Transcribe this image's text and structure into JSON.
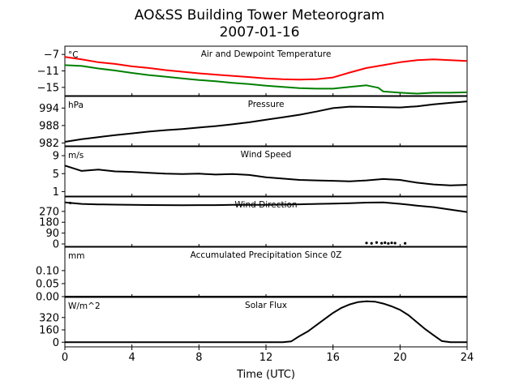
{
  "title": "AO&SS Building Tower Meteorogram",
  "date": "2007-01-16",
  "xlabel": "Time (UTC)",
  "chart_data": {
    "type": "line",
    "xlim": [
      0,
      24
    ],
    "x_ticks": [
      0,
      4,
      8,
      12,
      16,
      20,
      24
    ],
    "panels": [
      {
        "key": "temp",
        "title": "Air and Dewpoint Temperature",
        "unit": "°C",
        "ylim": [
          -17,
          -5
        ],
        "yticks": [
          -7,
          -11,
          -15
        ],
        "ytick_labels": [
          "−7",
          "−11",
          "−15"
        ],
        "series": [
          {
            "color": "#ff0000",
            "x": [
              0,
              1,
              2,
              3,
              4,
              5,
              6,
              7,
              8,
              9,
              10,
              11,
              12,
              13,
              14,
              15,
              16,
              17,
              18,
              19,
              20,
              21,
              22,
              23,
              24
            ],
            "y": [
              -7.6,
              -8.2,
              -8.9,
              -9.3,
              -9.9,
              -10.3,
              -10.8,
              -11.2,
              -11.6,
              -11.9,
              -12.2,
              -12.5,
              -12.8,
              -13.0,
              -13.1,
              -13.0,
              -12.6,
              -11.4,
              -10.3,
              -9.6,
              -8.9,
              -8.4,
              -8.2,
              -8.4,
              -8.6
            ]
          },
          {
            "color": "#008000",
            "x": [
              0,
              1,
              2,
              3,
              4,
              5,
              6,
              7,
              8,
              9,
              10,
              11,
              12,
              13,
              14,
              15,
              16,
              17,
              18,
              18.7,
              19,
              20,
              21,
              22,
              23,
              24
            ],
            "y": [
              -9.6,
              -9.8,
              -10.4,
              -10.9,
              -11.5,
              -12.0,
              -12.4,
              -12.8,
              -13.2,
              -13.5,
              -13.9,
              -14.2,
              -14.6,
              -14.9,
              -15.2,
              -15.3,
              -15.3,
              -14.9,
              -14.5,
              -15.1,
              -16.0,
              -16.3,
              -16.5,
              -16.3,
              -16.3,
              -16.2
            ]
          }
        ]
      },
      {
        "key": "pressure",
        "title": "Pressure",
        "unit": "hPa",
        "ylim": [
          981,
          998
        ],
        "yticks": [
          994,
          988,
          982
        ],
        "ytick_labels": [
          "994",
          "988",
          "982"
        ],
        "series": [
          {
            "color": "#000000",
            "x": [
              0,
              1,
              2,
              3,
              4,
              5,
              6,
              7,
              8,
              9,
              10,
              11,
              12,
              13,
              14,
              15,
              16,
              17,
              18,
              19,
              20,
              21,
              22,
              23,
              24
            ],
            "y": [
              982.4,
              983.3,
              984.0,
              984.7,
              985.3,
              985.9,
              986.4,
              986.8,
              987.3,
              987.8,
              988.4,
              989.1,
              990.0,
              990.8,
              991.7,
              992.8,
              994.0,
              994.5,
              994.4,
              994.3,
              994.2,
              994.6,
              995.3,
              995.8,
              996.3
            ]
          }
        ]
      },
      {
        "key": "wind_speed",
        "title": "Wind Speed",
        "unit": "m/s",
        "ylim": [
          0,
          11
        ],
        "yticks": [
          9,
          5,
          1
        ],
        "ytick_labels": [
          "9",
          "5",
          "1"
        ],
        "series": [
          {
            "color": "#000000",
            "x": [
              0,
              1,
              2,
              3,
              4,
              5,
              6,
              7,
              8,
              9,
              10,
              11,
              12,
              13,
              14,
              15,
              16,
              17,
              18,
              19,
              20,
              21,
              22,
              23,
              24
            ],
            "y": [
              6.8,
              5.6,
              5.9,
              5.5,
              5.4,
              5.2,
              5.0,
              4.9,
              5.0,
              4.8,
              4.9,
              4.7,
              4.2,
              3.9,
              3.6,
              3.5,
              3.4,
              3.3,
              3.5,
              3.8,
              3.6,
              3.0,
              2.6,
              2.4,
              2.5
            ]
          }
        ]
      },
      {
        "key": "wind_dir",
        "title": "Wind Direction",
        "unit": "°",
        "ylim": [
          -20,
          390
        ],
        "yticks": [
          270,
          180,
          90,
          0
        ],
        "ytick_labels": [
          "270",
          "180",
          "90",
          "0"
        ],
        "series": [
          {
            "color": "#000000",
            "x": [
              0,
              1,
              2,
              3,
              4,
              5,
              6,
              7,
              8,
              9,
              10,
              11,
              12,
              13,
              14,
              15,
              16,
              17,
              18,
              19,
              20,
              21,
              22,
              23,
              24
            ],
            "y": [
              345,
              332,
              328,
              326,
              325,
              323,
              322,
              321,
              322,
              322,
              324,
              325,
              324,
              326,
              329,
              332,
              334,
              338,
              343,
              345,
              333,
              318,
              305,
              285,
              265
            ]
          }
        ],
        "points": [
          {
            "x": [
              18.0,
              18.3,
              18.6,
              18.9,
              19.1,
              19.3,
              19.5,
              19.7,
              20.3
            ],
            "y": [
              8,
              5,
              12,
              6,
              10,
              4,
              9,
              7,
              5
            ]
          }
        ]
      },
      {
        "key": "precip",
        "title": "Accumulated Precipitation Since 0Z",
        "unit": "mm",
        "ylim": [
          0,
          0.19
        ],
        "yticks": [
          0.1,
          0.05,
          0.0
        ],
        "ytick_labels": [
          "0.10",
          "0.05",
          "0.00"
        ],
        "series": [
          {
            "color": "#000000",
            "x": [
              0,
              24
            ],
            "y": [
              0,
              0
            ]
          }
        ]
      },
      {
        "key": "solar",
        "title": "Solar Flux",
        "unit": "W/m^2",
        "ylim": [
          -60,
          580
        ],
        "yticks": [
          320,
          160,
          0
        ],
        "ytick_labels": [
          "320",
          "160",
          "0"
        ],
        "series": [
          {
            "color": "#000000",
            "x": [
              0,
              12,
              13,
              13.5,
              14,
              14.5,
              15,
              15.5,
              16,
              16.5,
              17,
              17.5,
              18,
              18.5,
              19,
              19.5,
              20,
              20.5,
              21,
              21.5,
              22,
              22.5,
              23,
              24
            ],
            "y": [
              0,
              0,
              0,
              10,
              80,
              140,
              220,
              300,
              380,
              445,
              490,
              520,
              530,
              525,
              500,
              465,
              420,
              350,
              260,
              170,
              90,
              15,
              0,
              0
            ]
          }
        ]
      }
    ]
  }
}
